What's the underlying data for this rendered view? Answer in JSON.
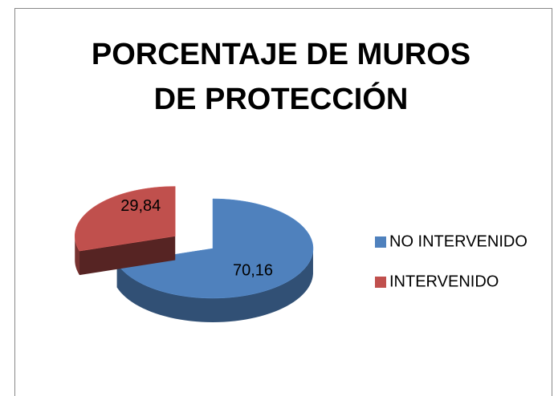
{
  "chart_data": {
    "type": "pie",
    "title": "PORCENTAJE DE MUROS DE PROTECCIÓN",
    "labels": [
      "NO INTERVENIDO",
      "INTERVENIDO"
    ],
    "values": [
      70.16,
      29.84
    ],
    "value_labels": [
      "70,16",
      "29,84"
    ],
    "colors": [
      "#4f81bd",
      "#c0504d"
    ],
    "legend": "right"
  }
}
